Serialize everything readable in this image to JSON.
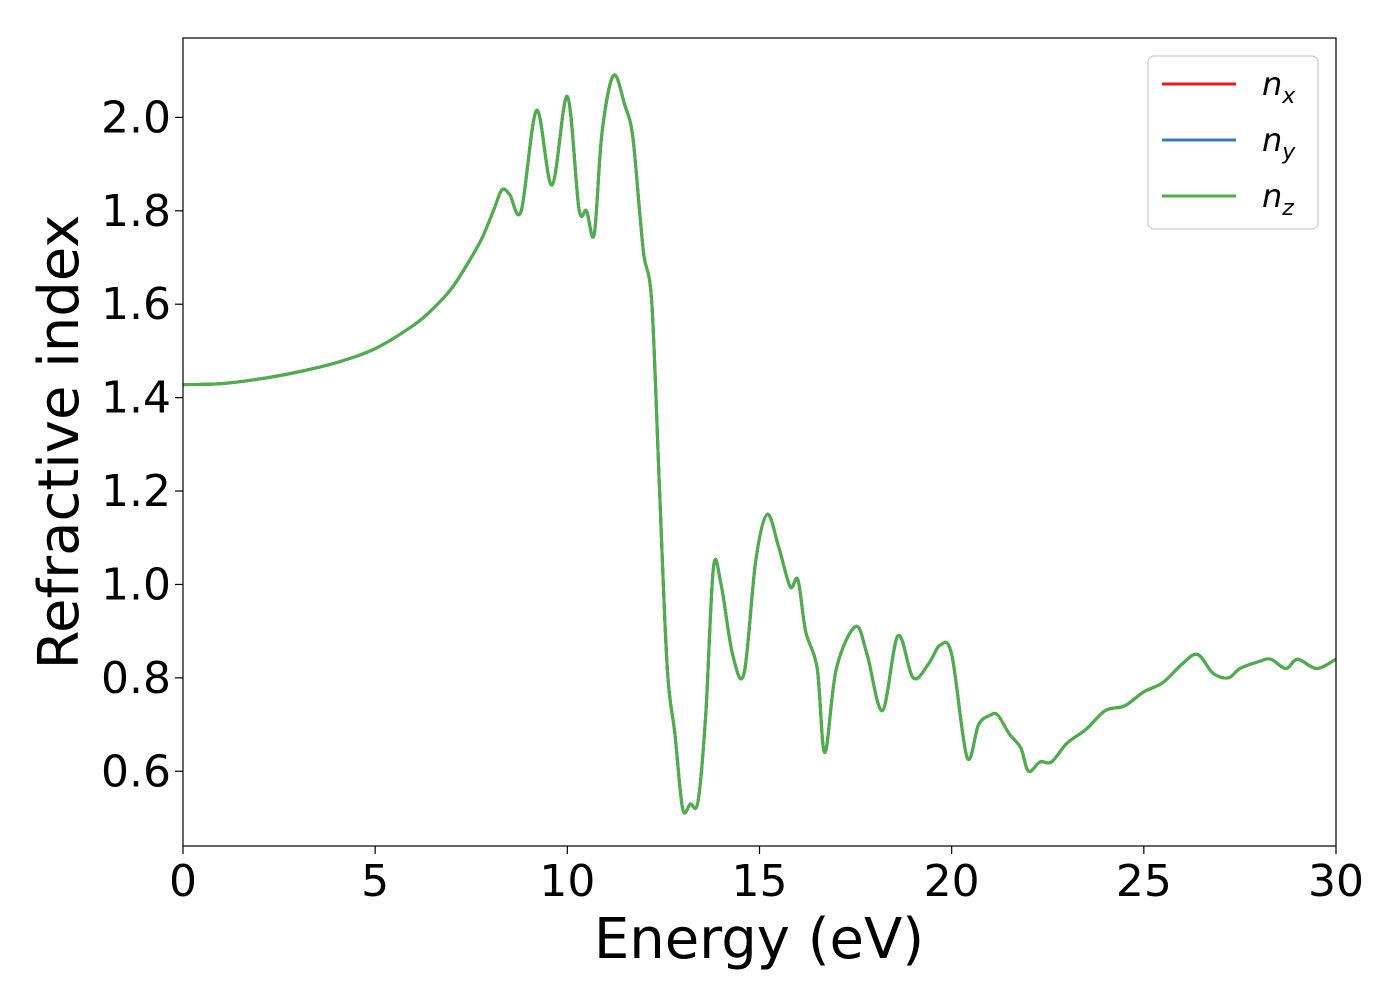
{
  "chart_data": {
    "type": "line",
    "title": "",
    "xlabel": "Energy (eV)",
    "ylabel": "Refractive index",
    "xlim": [
      0,
      30
    ],
    "ylim": [
      0.44,
      2.17
    ],
    "xticks": [
      0,
      5,
      10,
      15,
      20,
      25,
      30
    ],
    "xtick_labels": [
      "0",
      "5",
      "10",
      "15",
      "20",
      "25",
      "30"
    ],
    "yticks": [
      0.6,
      0.8,
      1.0,
      1.2,
      1.4,
      1.6,
      1.8,
      2.0
    ],
    "ytick_labels": [
      "0.6",
      "0.8",
      "1.0",
      "1.2",
      "1.4",
      "1.6",
      "1.8",
      "2.0"
    ],
    "grid": false,
    "legend_position": "top-right",
    "series": [
      {
        "name": "n",
        "subscript": "x",
        "color": "#e41a1c"
      },
      {
        "name": "n",
        "subscript": "y",
        "color": "#377eb8"
      },
      {
        "name": "n",
        "subscript": "z",
        "color": "#4daf4a"
      }
    ],
    "x": [
      0,
      1,
      2,
      3,
      4,
      5,
      6,
      6.5,
      7,
      7.5,
      7.8,
      8.1,
      8.3,
      8.5,
      8.8,
      9.2,
      9.6,
      10.0,
      10.3,
      10.5,
      10.7,
      10.9,
      11.2,
      11.5,
      11.7,
      11.9,
      12.0,
      12.2,
      12.4,
      12.6,
      12.8,
      13.0,
      13.2,
      13.4,
      13.6,
      13.8,
      14.0,
      14.3,
      14.6,
      14.9,
      15.2,
      15.5,
      15.8,
      16.0,
      16.2,
      16.5,
      16.7,
      17.0,
      17.5,
      17.8,
      18.2,
      18.6,
      19.0,
      19.4,
      19.7,
      20.0,
      20.4,
      20.7,
      21.0,
      21.2,
      21.5,
      21.8,
      22.0,
      22.3,
      22.6,
      23.0,
      23.5,
      24.0,
      24.5,
      25.0,
      25.5,
      26.0,
      26.4,
      26.8,
      27.2,
      27.5,
      28.0,
      28.3,
      28.7,
      29.0,
      29.5,
      30.0
    ],
    "values": [
      1.428,
      1.43,
      1.44,
      1.455,
      1.475,
      1.505,
      1.555,
      1.59,
      1.635,
      1.7,
      1.745,
      1.805,
      1.845,
      1.835,
      1.8,
      2.015,
      1.855,
      2.045,
      1.805,
      1.8,
      1.75,
      1.965,
      2.09,
      2.025,
      1.96,
      1.78,
      1.7,
      1.6,
      1.2,
      0.82,
      0.68,
      0.52,
      0.53,
      0.535,
      0.72,
      1.035,
      1.0,
      0.85,
      0.81,
      1.05,
      1.15,
      1.08,
      0.995,
      1.01,
      0.9,
      0.82,
      0.64,
      0.82,
      0.91,
      0.85,
      0.73,
      0.89,
      0.8,
      0.83,
      0.87,
      0.85,
      0.63,
      0.7,
      0.72,
      0.72,
      0.68,
      0.65,
      0.6,
      0.62,
      0.62,
      0.66,
      0.69,
      0.73,
      0.74,
      0.77,
      0.79,
      0.83,
      0.85,
      0.81,
      0.8,
      0.82,
      0.835,
      0.84,
      0.82,
      0.84,
      0.82,
      0.84
    ]
  }
}
